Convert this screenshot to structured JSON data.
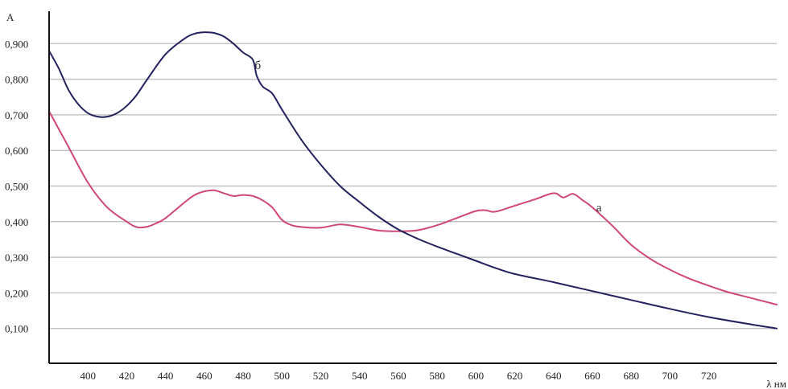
{
  "chart_data": {
    "type": "line",
    "title": "",
    "xlabel": "λ нм",
    "ylabel": "А",
    "xlim": [
      380,
      755
    ],
    "ylim": [
      0.0,
      1.0
    ],
    "grid": true,
    "x_ticks": [
      400,
      420,
      440,
      460,
      480,
      500,
      520,
      540,
      560,
      580,
      600,
      620,
      640,
      660,
      680,
      700,
      720
    ],
    "x_tick_labels": [
      "400",
      "420",
      "440",
      "460",
      "480",
      "500",
      "520",
      "540",
      "560",
      "580",
      "600",
      "620",
      "640",
      "660",
      "680",
      "700",
      "720"
    ],
    "y_ticks": [
      0.1,
      0.2,
      0.3,
      0.4,
      0.5,
      0.6,
      0.7,
      0.8,
      0.9
    ],
    "y_tick_labels": [
      "0,100",
      "0,200",
      "0,300",
      "0,400",
      "0,500",
      "0,600",
      "0,700",
      "0,800",
      "0,900"
    ],
    "series": [
      {
        "name": "а",
        "color": "#d0457a",
        "label_at": [
          662,
          0.44
        ],
        "x": [
          380,
          390,
          400,
          410,
          420,
          425,
          430,
          435,
          440,
          450,
          455,
          460,
          465,
          470,
          475,
          480,
          485,
          490,
          495,
          500,
          505,
          510,
          520,
          530,
          540,
          550,
          560,
          570,
          580,
          590,
          600,
          605,
          610,
          620,
          630,
          640,
          645,
          650,
          655,
          660,
          670,
          680,
          690,
          700,
          710,
          720,
          730,
          740,
          755
        ],
        "y": [
          0.71,
          0.61,
          0.51,
          0.44,
          0.4,
          0.385,
          0.385,
          0.395,
          0.41,
          0.455,
          0.475,
          0.485,
          0.488,
          0.48,
          0.472,
          0.475,
          0.472,
          0.46,
          0.44,
          0.405,
          0.39,
          0.385,
          0.383,
          0.392,
          0.385,
          0.375,
          0.373,
          0.376,
          0.39,
          0.41,
          0.43,
          0.432,
          0.428,
          0.445,
          0.462,
          0.48,
          0.468,
          0.478,
          0.46,
          0.44,
          0.39,
          0.335,
          0.295,
          0.265,
          0.24,
          0.22,
          0.202,
          0.188,
          0.167
        ]
      },
      {
        "name": "б",
        "color": "#23215e",
        "label_at": [
          486,
          0.84
        ],
        "x": [
          380,
          385,
          390,
          395,
          400,
          405,
          410,
          415,
          420,
          425,
          430,
          440,
          450,
          455,
          460,
          465,
          470,
          475,
          480,
          485,
          487,
          490,
          495,
          500,
          510,
          520,
          530,
          540,
          550,
          560,
          570,
          580,
          590,
          600,
          610,
          620,
          640,
          660,
          680,
          700,
          720,
          740,
          755
        ],
        "y": [
          0.88,
          0.83,
          0.77,
          0.73,
          0.705,
          0.695,
          0.695,
          0.705,
          0.725,
          0.755,
          0.795,
          0.87,
          0.915,
          0.928,
          0.932,
          0.93,
          0.92,
          0.9,
          0.875,
          0.855,
          0.81,
          0.78,
          0.76,
          0.715,
          0.63,
          0.56,
          0.5,
          0.455,
          0.413,
          0.378,
          0.352,
          0.33,
          0.31,
          0.29,
          0.27,
          0.253,
          0.23,
          0.205,
          0.18,
          0.155,
          0.132,
          0.113,
          0.1
        ]
      }
    ]
  }
}
